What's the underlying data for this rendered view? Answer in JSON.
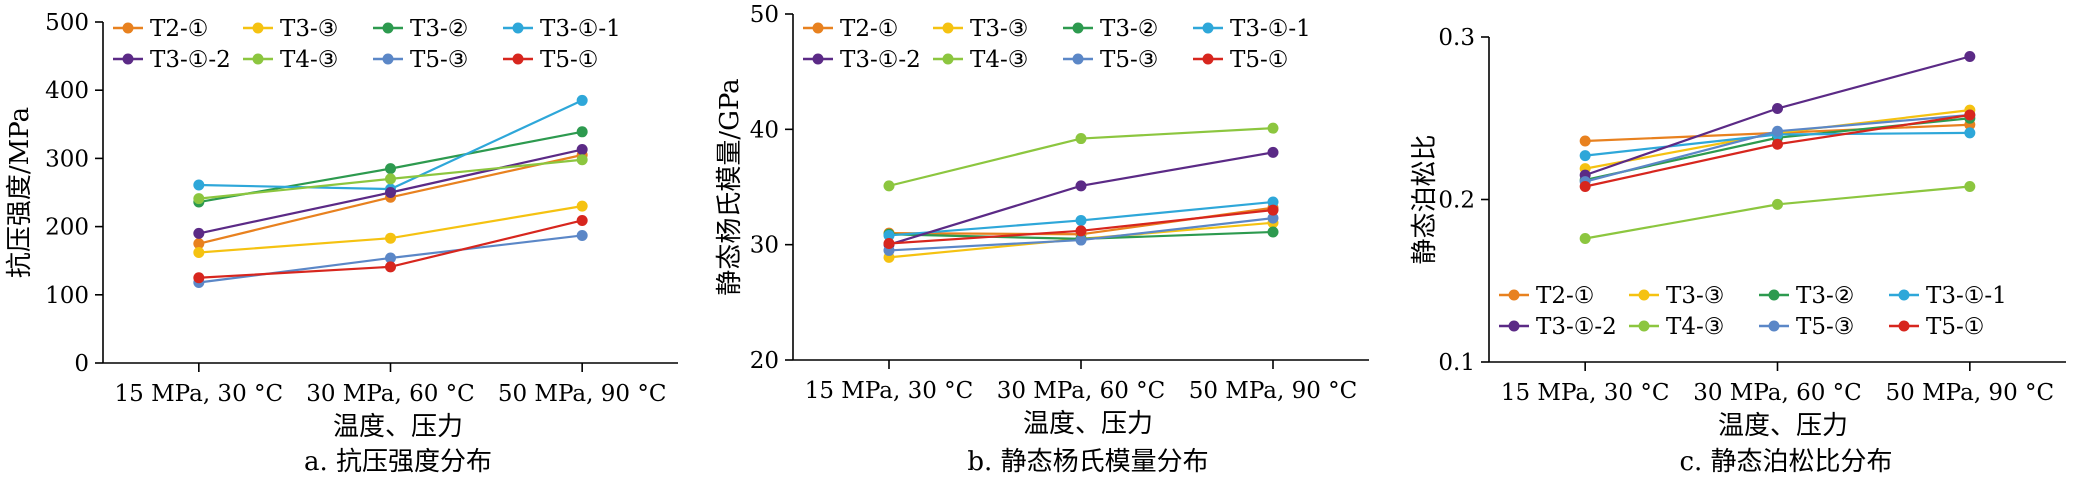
{
  "chart_data": [
    {
      "type": "line",
      "caption": "a. 抗压强度分布",
      "xlabel": "温度、压力",
      "ylabel": "抗压强度/MPa",
      "categories": [
        "15 MPa, 30 °C",
        "30 MPa, 60 °C",
        "50 MPa, 90 °C"
      ],
      "ylim": [
        0,
        500
      ],
      "yticks": [
        0,
        100,
        200,
        300,
        400,
        500
      ],
      "legend_position": "top",
      "series": [
        {
          "name": "T2-①",
          "color": "#e8811f",
          "values": [
            175,
            243,
            305
          ]
        },
        {
          "name": "T3-③",
          "color": "#f5c211",
          "values": [
            162,
            183,
            230
          ]
        },
        {
          "name": "T3-②",
          "color": "#2d9a4f",
          "values": [
            236,
            285,
            339
          ]
        },
        {
          "name": "T3-①-1",
          "color": "#2ea7d9",
          "values": [
            261,
            255,
            385
          ]
        },
        {
          "name": "T3-①-2",
          "color": "#5b2a86",
          "values": [
            190,
            250,
            313
          ]
        },
        {
          "name": "T4-③",
          "color": "#8cc63f",
          "values": [
            241,
            270,
            298
          ]
        },
        {
          "name": "T5-③",
          "color": "#5b87c7",
          "values": [
            118,
            154,
            187
          ]
        },
        {
          "name": "T5-①",
          "color": "#d7261e",
          "values": [
            125,
            141,
            209
          ]
        }
      ]
    },
    {
      "type": "line",
      "caption": "b. 静态杨氏模量分布",
      "xlabel": "温度、压力",
      "ylabel": "静态杨氏模量/GPa",
      "categories": [
        "15 MPa, 30 °C",
        "30 MPa, 60 °C",
        "50 MPa, 90 °C"
      ],
      "ylim": [
        20,
        50
      ],
      "yticks": [
        20,
        30,
        40,
        50
      ],
      "legend_position": "top",
      "series": [
        {
          "name": "T2-①",
          "color": "#e8811f",
          "values": [
            31.0,
            30.9,
            33.2
          ]
        },
        {
          "name": "T3-③",
          "color": "#f5c211",
          "values": [
            28.9,
            30.5,
            31.9
          ]
        },
        {
          "name": "T3-②",
          "color": "#2d9a4f",
          "values": [
            30.9,
            30.5,
            31.1
          ]
        },
        {
          "name": "T3-①-1",
          "color": "#2ea7d9",
          "values": [
            30.8,
            32.1,
            33.7
          ]
        },
        {
          "name": "T3-①-2",
          "color": "#5b2a86",
          "values": [
            30.0,
            35.1,
            38.0
          ]
        },
        {
          "name": "T4-③",
          "color": "#8cc63f",
          "values": [
            35.1,
            39.2,
            40.1
          ]
        },
        {
          "name": "T5-③",
          "color": "#5b87c7",
          "values": [
            29.5,
            30.4,
            32.3
          ]
        },
        {
          "name": "T5-①",
          "color": "#d7261e",
          "values": [
            30.1,
            31.2,
            33.0
          ]
        }
      ]
    },
    {
      "type": "line",
      "caption": "c. 静态泊松比分布",
      "xlabel": "温度、压力",
      "ylabel": "静态泊松比",
      "categories": [
        "15 MPa, 30 °C",
        "30 MPa, 60 °C",
        "50 MPa, 90 °C"
      ],
      "ylim": [
        0.1,
        0.3
      ],
      "yticks": [
        0.1,
        0.2,
        0.3
      ],
      "legend_position": "bottom",
      "series": [
        {
          "name": "T2-①",
          "color": "#e8811f",
          "values": [
            0.236,
            0.241,
            0.246
          ]
        },
        {
          "name": "T3-③",
          "color": "#f5c211",
          "values": [
            0.219,
            0.241,
            0.255
          ]
        },
        {
          "name": "T3-②",
          "color": "#2d9a4f",
          "values": [
            0.212,
            0.238,
            0.25
          ]
        },
        {
          "name": "T3-①-1",
          "color": "#2ea7d9",
          "values": [
            0.227,
            0.24,
            0.241
          ]
        },
        {
          "name": "T3-①-2",
          "color": "#5b2a86",
          "values": [
            0.215,
            0.256,
            0.288
          ]
        },
        {
          "name": "T4-③",
          "color": "#8cc63f",
          "values": [
            0.176,
            0.197,
            0.208
          ]
        },
        {
          "name": "T5-③",
          "color": "#5b87c7",
          "values": [
            0.211,
            0.242,
            0.252
          ]
        },
        {
          "name": "T5-①",
          "color": "#d7261e",
          "values": [
            0.208,
            0.234,
            0.252
          ]
        }
      ]
    }
  ]
}
